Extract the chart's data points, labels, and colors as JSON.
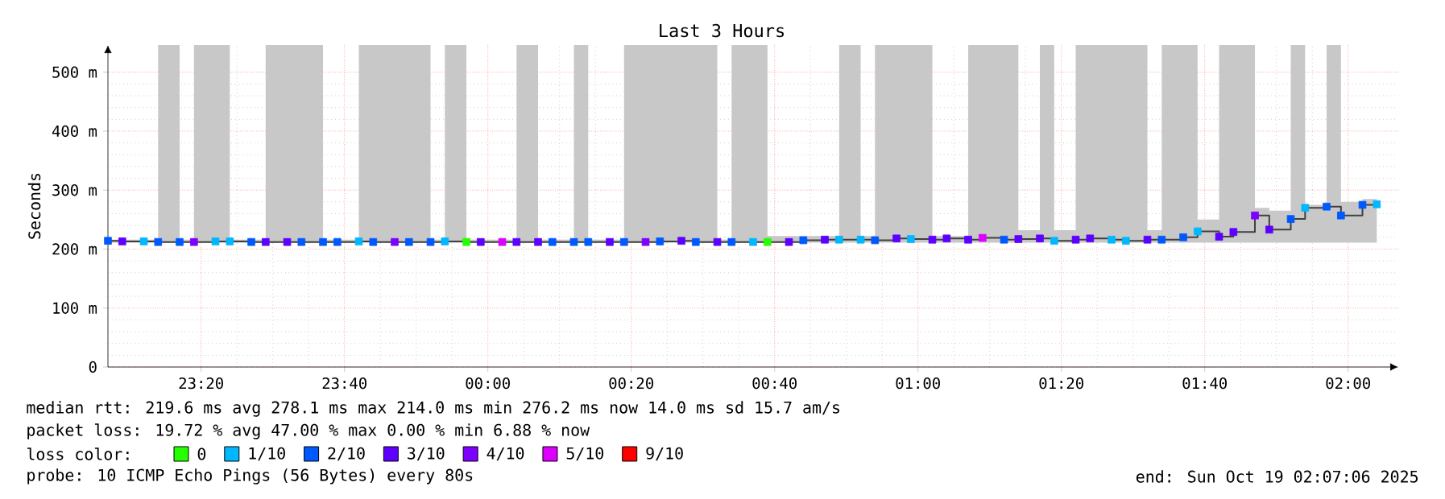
{
  "chart_data": {
    "type": "step",
    "title": "Last 3 Hours",
    "ylabel": "Seconds",
    "legend_title": "loss color:",
    "xlim": [
      "2025-10-18T23:07",
      "2025-10-19T02:07"
    ],
    "ylim": [
      0,
      546
    ],
    "xticks": [
      {
        "value": "2025-10-18T23:20",
        "label": "23:20"
      },
      {
        "value": "2025-10-18T23:40",
        "label": "23:40"
      },
      {
        "value": "2025-10-19T00:00",
        "label": "00:00"
      },
      {
        "value": "2025-10-19T00:20",
        "label": "00:20"
      },
      {
        "value": "2025-10-19T00:40",
        "label": "00:40"
      },
      {
        "value": "2025-10-19T01:00",
        "label": "01:00"
      },
      {
        "value": "2025-10-19T01:20",
        "label": "01:20"
      },
      {
        "value": "2025-10-19T01:40",
        "label": "01:40"
      },
      {
        "value": "2025-10-19T02:00",
        "label": "02:00"
      }
    ],
    "yticks": [
      0,
      {
        "value": 100,
        "label": "100 m"
      },
      {
        "value": 200,
        "label": "200 m"
      },
      {
        "value": 300,
        "label": "300 m"
      },
      {
        "value": 400,
        "label": "400 m"
      },
      {
        "value": 500,
        "label": "500 m"
      }
    ],
    "grid": true,
    "legend": "bottom",
    "series": [
      {
        "color": "#404040",
        "x": [
          "2025-10-18T23:07",
          "2025-10-18T23:09",
          "2025-10-18T23:12",
          "2025-10-18T23:14",
          "2025-10-18T23:17",
          "2025-10-18T23:19",
          "2025-10-18T23:22",
          "2025-10-18T23:24",
          "2025-10-18T23:27",
          "2025-10-18T23:29",
          "2025-10-18T23:32",
          "2025-10-18T23:34",
          "2025-10-18T23:37",
          "2025-10-18T23:39",
          "2025-10-18T23:42",
          "2025-10-18T23:44",
          "2025-10-18T23:47",
          "2025-10-18T23:49",
          "2025-10-18T23:52",
          "2025-10-18T23:54",
          "2025-10-18T23:57",
          "2025-10-18T23:59",
          "2025-10-19T00:02",
          "2025-10-19T00:04",
          "2025-10-19T00:07",
          "2025-10-19T00:09",
          "2025-10-19T00:12",
          "2025-10-19T00:14",
          "2025-10-19T00:17",
          "2025-10-19T00:19",
          "2025-10-19T00:22",
          "2025-10-19T00:24",
          "2025-10-19T00:27",
          "2025-10-19T00:29",
          "2025-10-19T00:32",
          "2025-10-19T00:34",
          "2025-10-19T00:37",
          "2025-10-19T00:39",
          "2025-10-19T00:42",
          "2025-10-19T00:44",
          "2025-10-19T00:47",
          "2025-10-19T00:49",
          "2025-10-19T00:52",
          "2025-10-19T00:54",
          "2025-10-19T00:57",
          "2025-10-19T00:59",
          "2025-10-19T01:02",
          "2025-10-19T01:04",
          "2025-10-19T01:07",
          "2025-10-19T01:09",
          "2025-10-19T01:12",
          "2025-10-19T01:14",
          "2025-10-19T01:17",
          "2025-10-19T01:19",
          "2025-10-19T01:22",
          "2025-10-19T01:24",
          "2025-10-19T01:27",
          "2025-10-19T01:29",
          "2025-10-19T01:32",
          "2025-10-19T01:34",
          "2025-10-19T01:37",
          "2025-10-19T01:39",
          "2025-10-19T01:42",
          "2025-10-19T01:44",
          "2025-10-19T01:47",
          "2025-10-19T01:49",
          "2025-10-19T01:52",
          "2025-10-19T01:54",
          "2025-10-19T01:57",
          "2025-10-19T01:59",
          "2025-10-19T02:02",
          "2025-10-19T02:04"
        ],
        "values": [
          214,
          213,
          213,
          212,
          212,
          212,
          213,
          213,
          212,
          212,
          212,
          212,
          212,
          212,
          213,
          212,
          212,
          212,
          212,
          213,
          212,
          212,
          212,
          212,
          212,
          212,
          212,
          212,
          212,
          212,
          212,
          213,
          214,
          212,
          212,
          212,
          212,
          212,
          212,
          215,
          216,
          216,
          216,
          215,
          218,
          217,
          216,
          218,
          216,
          219,
          216,
          217,
          218,
          214,
          216,
          218,
          216,
          214,
          216,
          216,
          220,
          230,
          221,
          229,
          257,
          233,
          251,
          270,
          272,
          257,
          275,
          276
        ],
        "lower": [
          211,
          211,
          211,
          211,
          211,
          211,
          211,
          211,
          211,
          211,
          211,
          211,
          211,
          211,
          211,
          211,
          211,
          211,
          211,
          211,
          211,
          211,
          211,
          211,
          211,
          211,
          211,
          211,
          211,
          211,
          211,
          211,
          211,
          211,
          211,
          211,
          211,
          211,
          211,
          211,
          211,
          211,
          211,
          211,
          211,
          211,
          211,
          211,
          211,
          211,
          211,
          211,
          211,
          211,
          211,
          211,
          211,
          211,
          211,
          211,
          211,
          211,
          211,
          211,
          211,
          211,
          211,
          211,
          211,
          211,
          211,
          211
        ],
        "upper": [
          216,
          216,
          216,
          546,
          216,
          546,
          546,
          216,
          216,
          546,
          546,
          546,
          216,
          216,
          546,
          546,
          546,
          546,
          216,
          546,
          216,
          216,
          216,
          546,
          216,
          216,
          546,
          216,
          216,
          546,
          546,
          546,
          546,
          546,
          216,
          546,
          546,
          222,
          222,
          222,
          222,
          546,
          222,
          546,
          546,
          546,
          222,
          222,
          546,
          546,
          546,
          232,
          546,
          232,
          546,
          546,
          546,
          546,
          232,
          546,
          546,
          250,
          546,
          546,
          270,
          265,
          546,
          275,
          546,
          280,
          285,
          290
        ]
      },
      {
        "name": "0",
        "type": "scatter",
        "marker": "square",
        "color": "#26ff00",
        "x": [
          "2025-10-18T23:57",
          "2025-10-19T00:39"
        ],
        "values": [
          212,
          212
        ]
      },
      {
        "name": "1/10",
        "type": "scatter",
        "marker": "square",
        "color": "#00b8ff",
        "x": [
          "2025-10-18T23:12",
          "2025-10-18T23:22",
          "2025-10-18T23:24",
          "2025-10-18T23:42",
          "2025-10-18T23:54",
          "2025-10-19T00:37",
          "2025-10-19T00:49",
          "2025-10-19T00:52",
          "2025-10-19T00:59",
          "2025-10-19T01:19",
          "2025-10-19T01:27",
          "2025-10-19T01:29",
          "2025-10-19T01:39",
          "2025-10-19T01:54",
          "2025-10-19T02:04"
        ],
        "values": [
          213,
          213,
          213,
          213,
          213,
          212,
          216,
          216,
          217,
          214,
          216,
          214,
          230,
          270,
          276
        ]
      },
      {
        "name": "2/10",
        "type": "scatter",
        "marker": "square",
        "color": "#0059ff",
        "x": [
          "2025-10-18T23:07",
          "2025-10-18T23:14",
          "2025-10-18T23:17",
          "2025-10-18T23:27",
          "2025-10-18T23:34",
          "2025-10-18T23:37",
          "2025-10-18T23:39",
          "2025-10-18T23:44",
          "2025-10-18T23:49",
          "2025-10-18T23:52",
          "2025-10-19T00:09",
          "2025-10-19T00:12",
          "2025-10-19T00:14",
          "2025-10-19T00:19",
          "2025-10-19T00:24",
          "2025-10-19T00:29",
          "2025-10-19T00:34",
          "2025-10-19T00:44",
          "2025-10-19T00:54",
          "2025-10-19T01:12",
          "2025-10-19T01:34",
          "2025-10-19T01:37",
          "2025-10-19T01:52",
          "2025-10-19T01:57",
          "2025-10-19T01:59",
          "2025-10-19T02:02"
        ],
        "values": [
          214,
          212,
          212,
          212,
          212,
          212,
          212,
          212,
          212,
          212,
          212,
          212,
          212,
          212,
          213,
          212,
          212,
          215,
          215,
          216,
          216,
          220,
          251,
          272,
          257,
          275
        ]
      },
      {
        "name": "3/10",
        "type": "scatter",
        "marker": "square",
        "color": "#5e00ff",
        "x": [
          "2025-10-18T23:09",
          "2025-10-18T23:29",
          "2025-10-18T23:32",
          "2025-10-18T23:59",
          "2025-10-19T00:04",
          "2025-10-19T00:07",
          "2025-10-19T00:17",
          "2025-10-19T00:27",
          "2025-10-19T00:32",
          "2025-10-19T00:42",
          "2025-10-19T00:47",
          "2025-10-19T00:57",
          "2025-10-19T01:02",
          "2025-10-19T01:04",
          "2025-10-19T01:07",
          "2025-10-19T01:14",
          "2025-10-19T01:17",
          "2025-10-19T01:22",
          "2025-10-19T01:24",
          "2025-10-19T01:32",
          "2025-10-19T01:42",
          "2025-10-19T01:44",
          "2025-10-19T01:49"
        ],
        "values": [
          213,
          212,
          212,
          212,
          212,
          212,
          212,
          214,
          212,
          212,
          216,
          218,
          216,
          218,
          216,
          217,
          218,
          216,
          218,
          216,
          221,
          229,
          233
        ]
      },
      {
        "name": "4/10",
        "type": "scatter",
        "marker": "square",
        "color": "#7e00ff",
        "x": [
          "2025-10-18T23:19",
          "2025-10-18T23:47",
          "2025-10-19T00:22",
          "2025-10-19T01:47"
        ],
        "values": [
          212,
          212,
          212,
          257
        ]
      },
      {
        "name": "5/10",
        "type": "scatter",
        "marker": "square",
        "color": "#dd00ff",
        "x": [
          "2025-10-19T00:02",
          "2025-10-19T01:09"
        ],
        "values": [
          212,
          219
        ]
      },
      {
        "name": "9/10",
        "color": "#ff0000"
      }
    ],
    "annotations": [
      "median rtt:  219.6 ms avg  278.1 ms max  214.0 ms min  276.2 ms now  14.0 ms sd  15.7   am/s",
      "packet loss: 19.72 % avg  47.00 % max  0.00 % min  6.88 % now",
      "probe:       10 ICMP Echo Pings (56 Bytes) every 80s",
      "end: Sun Oct 19 02:07:06 2025"
    ]
  }
}
